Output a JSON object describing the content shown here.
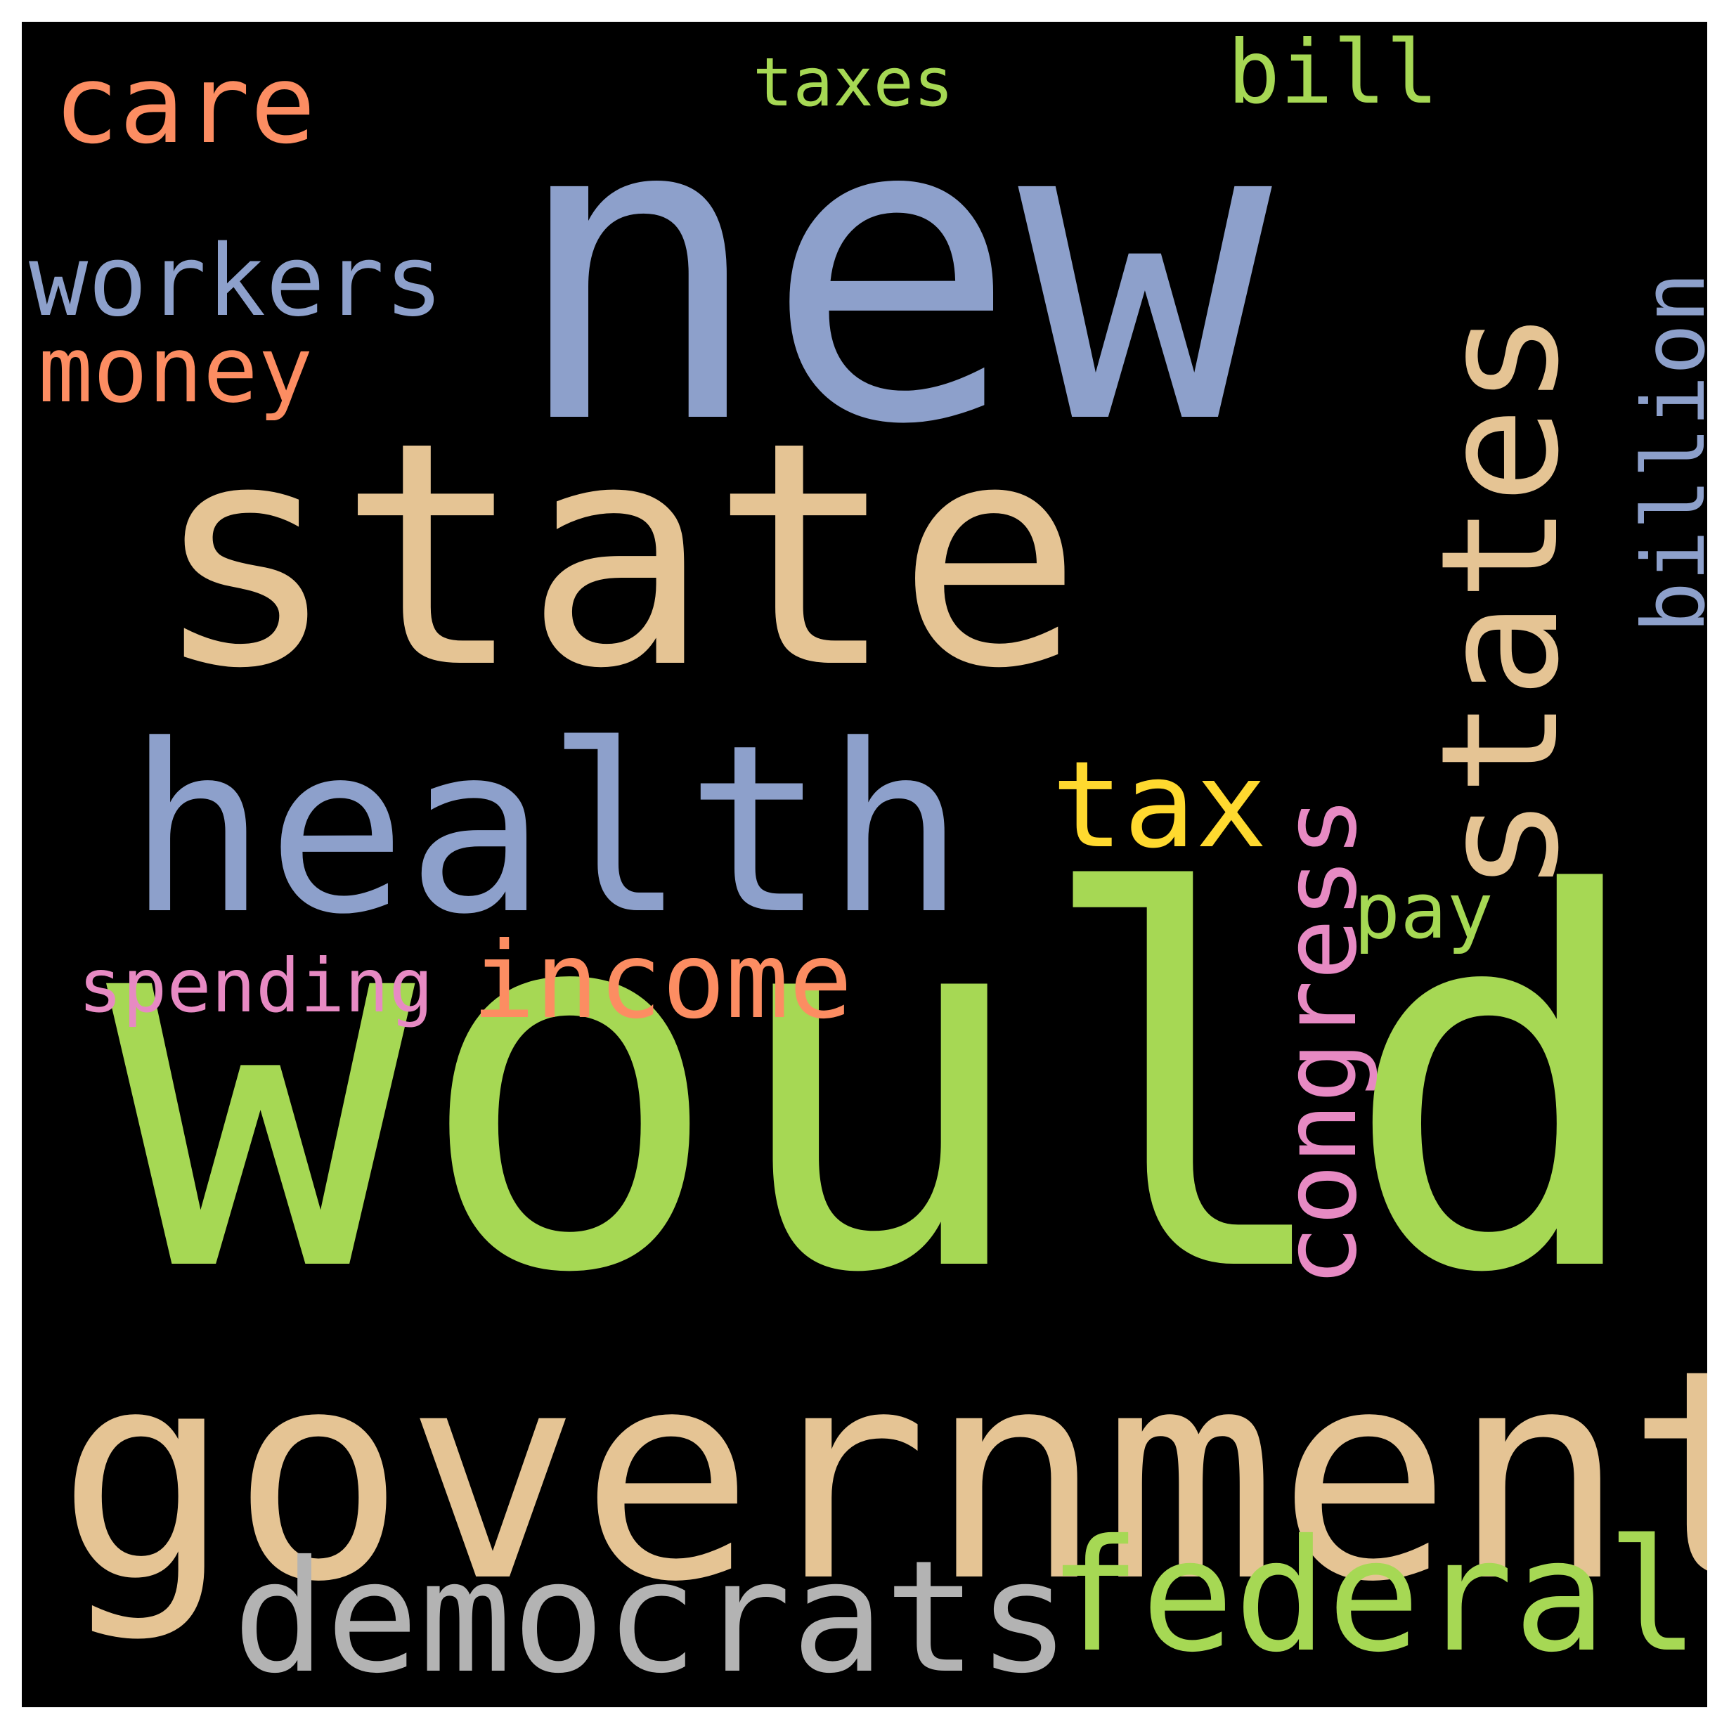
{
  "words": {
    "would": {
      "text": "would",
      "color": "#a6d854"
    },
    "state": {
      "text": "state",
      "color": "#e5c494"
    },
    "new": {
      "text": "new",
      "color": "#8da0cb"
    },
    "government": {
      "text": "government",
      "color": "#e5c494"
    },
    "health": {
      "text": "health",
      "color": "#8da0cb"
    },
    "states": {
      "text": "states",
      "color": "#e5c494"
    },
    "democrats": {
      "text": "democrats",
      "color": "#b3b3b3"
    },
    "federal": {
      "text": "federal",
      "color": "#a6d854"
    },
    "congress": {
      "text": "congress",
      "color": "#e78ac3"
    },
    "tax": {
      "text": "tax",
      "color": "#ffd92f"
    },
    "income": {
      "text": "income",
      "color": "#fc8d62"
    },
    "billion": {
      "text": "billion",
      "color": "#8da0cb"
    },
    "workers": {
      "text": "workers",
      "color": "#8da0cb"
    },
    "money": {
      "text": "money",
      "color": "#fc8d62"
    },
    "care": {
      "text": "care",
      "color": "#fc8d62"
    },
    "spending": {
      "text": "spending",
      "color": "#e78ac3"
    },
    "pay": {
      "text": "pay",
      "color": "#a6d854"
    },
    "bill": {
      "text": "bill",
      "color": "#a6d854"
    },
    "taxes": {
      "text": "taxes",
      "color": "#a6d854"
    }
  }
}
